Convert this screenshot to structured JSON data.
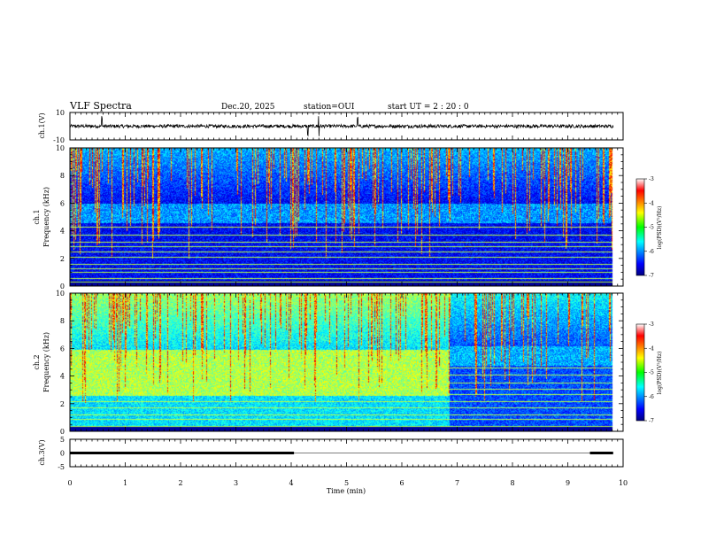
{
  "header": {
    "title": "VLF Spectra",
    "date": "Dec.20, 2025",
    "station": "station=OUI",
    "start_ut": "start  UT =   2 : 20 : 0"
  },
  "chart_data": [
    {
      "type": "line",
      "name": "ch1-waveform",
      "ylabel": "ch.1(V)",
      "ylim": [
        -10,
        10
      ],
      "yticks": [
        "10",
        "-10"
      ],
      "baseline": 0,
      "noise_amplitude": 1.2,
      "spike_times_min": [
        0.58,
        4.3,
        4.5,
        5.2
      ]
    },
    {
      "type": "heatmap",
      "name": "ch1-spectrogram",
      "ylabel": "ch.1\nFrequency (kHz)",
      "ylim": [
        0,
        10
      ],
      "yticks": [
        "0",
        "2",
        "4",
        "6",
        "8",
        "10"
      ],
      "cutoff_khz": 9.8,
      "regimes": [
        {
          "t0": 0,
          "t1": 9.8,
          "bg_level": -6.5,
          "emission_band_khz": [
            4.6,
            6.0
          ],
          "band_level": -5.9,
          "spike_density": 0.55
        }
      ],
      "lines_khz": [
        0.3,
        0.6,
        1.0,
        1.3,
        1.6,
        2.1,
        2.5,
        2.9,
        3.2,
        3.7,
        4.3
      ]
    },
    {
      "type": "heatmap",
      "name": "ch2-spectrogram",
      "ylabel": "ch.2\nFrequency (kHz)",
      "ylim": [
        0,
        10
      ],
      "yticks": [
        "0",
        "2",
        "4",
        "6",
        "8",
        "10"
      ],
      "cutoff_khz": 9.8,
      "regimes": [
        {
          "t0": 0,
          "t1": 6.85,
          "bg_level": -5.6,
          "emission_band_khz": [
            2.6,
            5.9
          ],
          "band_level": -4.8,
          "spike_density": 0.55
        },
        {
          "t0": 6.85,
          "t1": 9.8,
          "bg_level": -6.2,
          "emission_band_khz": [
            4.8,
            6.2
          ],
          "band_level": -5.8,
          "spike_density": 0.45
        }
      ],
      "lines_khz": [
        0.4,
        0.9,
        1.2,
        1.7,
        2.2,
        2.7,
        3.1,
        3.5,
        4.1,
        4.6
      ]
    },
    {
      "type": "line",
      "name": "ch3-status",
      "ylabel": "ch.3(V)",
      "ylim": [
        -5,
        5
      ],
      "yticks": [
        "5",
        "0",
        "-5"
      ],
      "segments": [
        {
          "t0": 0,
          "t1": 4.05,
          "value": 0
        },
        {
          "t0": 9.4,
          "t1": 9.82,
          "value": 0
        }
      ]
    }
  ],
  "xaxis": {
    "label": "Time (min)",
    "xlim": [
      0,
      10
    ],
    "ticks": [
      "0",
      "1",
      "2",
      "3",
      "4",
      "5",
      "6",
      "7",
      "8",
      "9",
      "10"
    ]
  },
  "colorbars": [
    {
      "label": "log(PSD)(V²/Hz)",
      "ticks": [
        "-3",
        "-4",
        "-5",
        "-6",
        "-7"
      ],
      "range": [
        -7,
        -3
      ]
    },
    {
      "label": "log(PSD)(V²/Hz)",
      "ticks": [
        "-3",
        "-4",
        "-5",
        "-6",
        "-7"
      ],
      "range": [
        -7,
        -3
      ]
    }
  ]
}
